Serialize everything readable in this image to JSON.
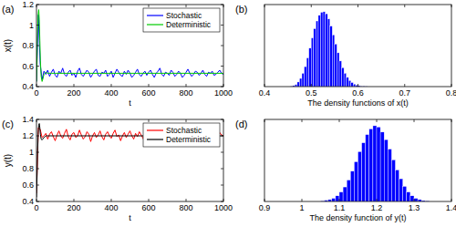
{
  "chart_data": [
    {
      "type": "line",
      "title": "(a)",
      "x_label": "t",
      "y_label": "x(t)",
      "xlim": [
        0,
        1000
      ],
      "ylim": [
        0.4,
        1.2
      ],
      "xticks": [
        0,
        200,
        400,
        600,
        800,
        1000
      ],
      "yticks": [
        0.4,
        0.6,
        0.8,
        1,
        1.2
      ],
      "legend": "upper right",
      "series": [
        {
          "name": "Stochastic",
          "color": "#0000ff",
          "x": [
            0,
            10,
            20,
            30,
            40,
            50,
            60,
            70,
            80,
            90,
            100,
            110,
            120,
            130,
            140,
            150,
            160,
            170,
            180,
            190,
            200,
            210,
            220,
            230,
            240,
            250,
            260,
            270,
            280,
            290,
            300,
            310,
            320,
            330,
            340,
            350,
            360,
            370,
            380,
            390,
            400,
            410,
            420,
            430,
            440,
            450,
            460,
            470,
            480,
            490,
            500,
            510,
            520,
            530,
            540,
            550,
            560,
            570,
            580,
            590,
            600,
            610,
            620,
            630,
            640,
            650,
            660,
            670,
            680,
            690,
            700,
            710,
            720,
            730,
            740,
            750,
            760,
            770,
            780,
            790,
            800,
            810,
            820,
            830,
            840,
            850,
            860,
            870,
            880,
            890,
            900,
            910,
            920,
            930,
            940,
            950,
            960,
            970,
            980,
            990,
            1000
          ],
          "values": [
            0.45,
            1.1,
            0.62,
            0.47,
            0.55,
            0.52,
            0.56,
            0.5,
            0.54,
            0.57,
            0.51,
            0.49,
            0.55,
            0.53,
            0.58,
            0.52,
            0.5,
            0.54,
            0.56,
            0.51,
            0.53,
            0.49,
            0.55,
            0.58,
            0.52,
            0.5,
            0.53,
            0.56,
            0.54,
            0.49,
            0.52,
            0.55,
            0.57,
            0.51,
            0.5,
            0.54,
            0.53,
            0.56,
            0.5,
            0.52,
            0.55,
            0.49,
            0.53,
            0.57,
            0.54,
            0.51,
            0.5,
            0.55,
            0.52,
            0.56,
            0.53,
            0.49,
            0.51,
            0.54,
            0.57,
            0.52,
            0.5,
            0.53,
            0.55,
            0.51,
            0.54,
            0.56,
            0.52,
            0.49,
            0.53,
            0.55,
            0.58,
            0.52,
            0.5,
            0.54,
            0.53,
            0.51,
            0.56,
            0.54,
            0.5,
            0.52,
            0.55,
            0.53,
            0.49,
            0.51,
            0.54,
            0.57,
            0.53,
            0.5,
            0.52,
            0.55,
            0.54,
            0.51,
            0.53,
            0.56,
            0.52,
            0.5,
            0.54,
            0.53,
            0.55,
            0.51,
            0.52,
            0.54,
            0.56,
            0.53,
            0.52
          ]
        },
        {
          "name": "Deterministic",
          "color": "#00cc00",
          "x": [
            0,
            3,
            6,
            9,
            12,
            15,
            18,
            21,
            25,
            30,
            35,
            40,
            50,
            60,
            80,
            100,
            1000
          ],
          "values": [
            0.45,
            0.7,
            0.95,
            1.1,
            1.15,
            1.05,
            0.85,
            0.65,
            0.5,
            0.45,
            0.48,
            0.52,
            0.54,
            0.53,
            0.53,
            0.53,
            0.53
          ]
        }
      ]
    },
    {
      "type": "histogram",
      "title": "(b)",
      "x_label": "The density functions of x(t)",
      "xlim": [
        0.4,
        0.8
      ],
      "xticks": [
        0.4,
        0.5,
        0.6,
        0.7,
        0.8
      ],
      "ylim": [
        0,
        16
      ],
      "tick_labels": "x",
      "color": "#0000ff",
      "bins": [
        0.455,
        0.46,
        0.465,
        0.47,
        0.475,
        0.48,
        0.485,
        0.49,
        0.495,
        0.5,
        0.505,
        0.51,
        0.515,
        0.52,
        0.525,
        0.53,
        0.535,
        0.54,
        0.545,
        0.55,
        0.555,
        0.56,
        0.565,
        0.57,
        0.575,
        0.58,
        0.585,
        0.59,
        0.595,
        0.6,
        0.605,
        0.61,
        0.615,
        0.62
      ],
      "values": [
        0.1,
        0.2,
        0.4,
        0.9,
        1.6,
        2.6,
        3.9,
        5.6,
        7.5,
        9.5,
        11.3,
        12.8,
        13.9,
        14.5,
        14.6,
        14.2,
        13.2,
        11.8,
        10.1,
        8.3,
        6.6,
        5.0,
        3.7,
        2.6,
        1.8,
        1.2,
        0.8,
        0.5,
        0.3,
        0.2,
        0.1,
        0.1,
        0.05
      ]
    },
    {
      "type": "line",
      "title": "(c)",
      "x_label": "t",
      "y_label": "y(t)",
      "xlim": [
        0,
        1000
      ],
      "ylim": [
        0.4,
        1.4
      ],
      "xticks": [
        0,
        200,
        400,
        600,
        800,
        1000
      ],
      "yticks": [
        0.4,
        0.6,
        0.8,
        1,
        1.2,
        1.4
      ],
      "legend": "upper right",
      "series": [
        {
          "name": "Stochastic",
          "color": "#ff0000",
          "x": [
            0,
            10,
            20,
            30,
            40,
            50,
            60,
            70,
            80,
            90,
            100,
            110,
            120,
            130,
            140,
            150,
            160,
            170,
            180,
            190,
            200,
            210,
            220,
            230,
            240,
            250,
            260,
            270,
            280,
            290,
            300,
            310,
            320,
            330,
            340,
            350,
            360,
            370,
            380,
            390,
            400,
            410,
            420,
            430,
            440,
            450,
            460,
            470,
            480,
            490,
            500,
            510,
            520,
            530,
            540,
            550,
            560,
            570,
            580,
            590,
            600,
            610,
            620,
            630,
            640,
            650,
            660,
            670,
            680,
            690,
            700,
            710,
            720,
            730,
            740,
            750,
            760,
            770,
            780,
            790,
            800,
            810,
            820,
            830,
            840,
            850,
            860,
            870,
            880,
            890,
            900,
            910,
            920,
            930,
            940,
            950,
            960,
            970,
            980,
            990,
            1000
          ],
          "values": [
            0.5,
            1.3,
            1.28,
            1.18,
            1.2,
            1.23,
            1.16,
            1.22,
            1.25,
            1.19,
            1.14,
            1.21,
            1.26,
            1.2,
            1.17,
            1.23,
            1.28,
            1.19,
            1.15,
            1.22,
            1.24,
            1.18,
            1.2,
            1.27,
            1.21,
            1.16,
            1.19,
            1.25,
            1.22,
            1.13,
            1.2,
            1.24,
            1.18,
            1.21,
            1.26,
            1.19,
            1.15,
            1.22,
            1.25,
            1.2,
            1.17,
            1.23,
            1.27,
            1.19,
            1.21,
            1.14,
            1.2,
            1.24,
            1.18,
            1.22,
            1.26,
            1.2,
            1.16,
            1.23,
            1.19,
            1.25,
            1.21,
            1.17,
            1.12,
            1.2,
            1.24,
            1.19,
            1.22,
            1.27,
            1.18,
            1.15,
            1.21,
            1.23,
            1.2,
            1.17,
            1.22,
            1.26,
            1.19,
            1.16,
            1.21,
            1.24,
            1.2,
            1.13,
            1.18,
            1.22,
            1.25,
            1.2,
            1.17,
            1.23,
            1.21,
            1.19,
            1.26,
            1.22,
            1.18,
            1.2,
            1.23,
            1.16,
            1.21,
            1.25,
            1.19,
            1.22,
            1.2,
            1.17,
            1.24,
            1.21,
            1.2
          ]
        },
        {
          "name": "Deterministic",
          "color": "#000000",
          "x": [
            0,
            3,
            6,
            9,
            12,
            15,
            18,
            21,
            25,
            30,
            40,
            50,
            60,
            100,
            1000
          ],
          "values": [
            0.45,
            0.7,
            1.0,
            1.22,
            1.33,
            1.35,
            1.3,
            1.22,
            1.16,
            1.15,
            1.18,
            1.2,
            1.2,
            1.2,
            1.2
          ]
        }
      ]
    },
    {
      "type": "histogram",
      "title": "(d)",
      "x_label": "The density function of y(t)",
      "xlim": [
        0.9,
        1.4
      ],
      "xticks": [
        0.9,
        1,
        1.1,
        1.2,
        1.3,
        1.4
      ],
      "ylim": [
        0,
        13
      ],
      "tick_labels": "x",
      "color": "#0000ff",
      "bins": [
        1.05,
        1.06,
        1.07,
        1.08,
        1.09,
        1.1,
        1.11,
        1.12,
        1.13,
        1.14,
        1.15,
        1.16,
        1.17,
        1.18,
        1.19,
        1.2,
        1.21,
        1.22,
        1.23,
        1.24,
        1.25,
        1.26,
        1.27,
        1.28,
        1.29,
        1.3,
        1.31,
        1.32,
        1.33,
        1.34
      ],
      "values": [
        0.1,
        0.2,
        0.3,
        0.5,
        0.9,
        1.5,
        2.3,
        3.4,
        4.8,
        6.3,
        7.9,
        9.3,
        10.6,
        11.5,
        12.0,
        11.8,
        11.0,
        9.8,
        8.3,
        6.6,
        5.0,
        3.6,
        2.4,
        1.5,
        0.9,
        0.5,
        0.3,
        0.15,
        0.1
      ]
    }
  ]
}
